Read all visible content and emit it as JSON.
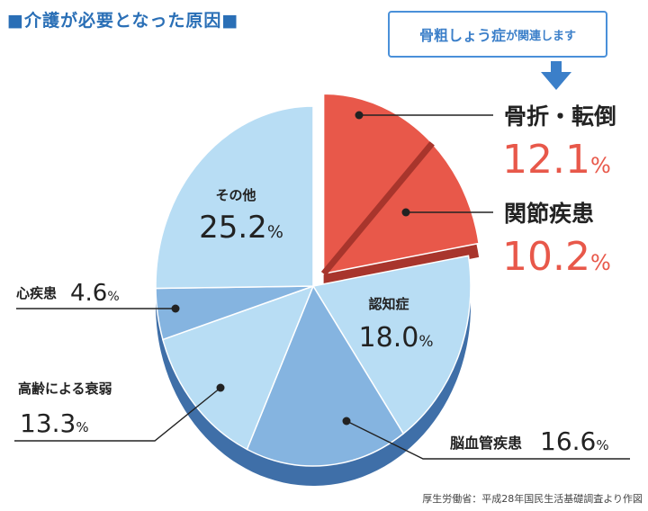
{
  "title": "■介護が必要となった原因■",
  "callout": {
    "main": "骨粗しょう症",
    "sub": "が関連します"
  },
  "source_note": "厚生労働省：平成28年国民生活基礎調査より作図",
  "percent_sign": "%",
  "colors": {
    "red": "#e8584a",
    "red_dark": "#a8352c",
    "light_blue": "#b8ddf4",
    "mid_blue": "#85b4e0",
    "shadow_blue": "#3f6fa8",
    "accent_blue": "#3b7fc9"
  },
  "chart_data": {
    "type": "pie",
    "title": "介護が必要となった原因",
    "slices": [
      {
        "label": "骨折・転倒",
        "value": 12.1,
        "display": "12.1",
        "color": "#e8584a"
      },
      {
        "label": "関節疾患",
        "value": 10.2,
        "display": "10.2",
        "color": "#e8584a"
      },
      {
        "label": "認知症",
        "value": 18.0,
        "display": "18.0",
        "color": "#b8ddf4"
      },
      {
        "label": "脳血管疾患",
        "value": 16.6,
        "display": "16.6",
        "color": "#85b4e0"
      },
      {
        "label": "高齢による衰弱",
        "value": 13.3,
        "display": "13.3",
        "color": "#b8ddf4"
      },
      {
        "label": "心疾患",
        "value": 4.6,
        "display": "4.6",
        "color": "#85b4e0"
      },
      {
        "label": "その他",
        "value": 25.2,
        "display": "25.2",
        "color": "#b8ddf4"
      }
    ]
  }
}
